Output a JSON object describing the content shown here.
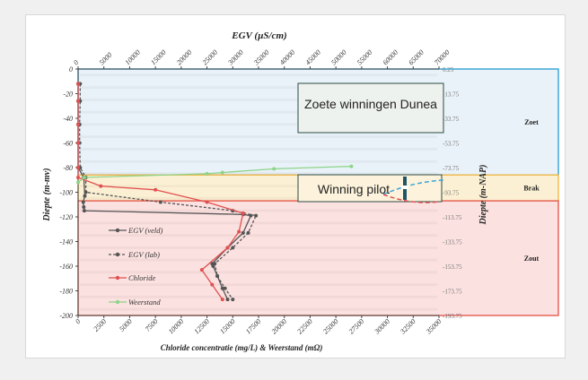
{
  "chart_data": {
    "type": "line",
    "title": "EGV (µS/cm)",
    "xlabel": "Chloride concentratie (mg/L) & Weerstand (mΩ)",
    "ylabel": "Diepte (m-mv)",
    "y2label": "Diepte (m-NAP)",
    "xlim": [
      0,
      35000
    ],
    "x2lim": [
      0,
      70000
    ],
    "ylim": [
      -200,
      0
    ],
    "x_ticks": [
      "0",
      "2500",
      "5000",
      "7500",
      "10000",
      "12500",
      "15000",
      "17500",
      "20000",
      "22500",
      "25000",
      "27500",
      "30000",
      "32500",
      "35000"
    ],
    "x2_ticks": [
      "0",
      "5000",
      "10000",
      "15000",
      "20000",
      "25000",
      "30000",
      "35000",
      "40000",
      "45000",
      "50000",
      "55000",
      "60000",
      "65000",
      "70000"
    ],
    "y_ticks": [
      "0",
      "-20",
      "-40",
      "-60",
      "-80",
      "-100",
      "-120",
      "-140",
      "-160",
      "-180",
      "-200"
    ],
    "y2_ticks": [
      "6.25",
      "-13.75",
      "-33.75",
      "-53.75",
      "-73.75",
      "-93.75",
      "-113.75",
      "-133.75",
      "-153.75",
      "-173.75",
      "-193.75"
    ],
    "zones": [
      {
        "label": "Zoet",
        "from": 0,
        "to": -86,
        "fill": "#e9f2f8",
        "stroke": "#31a3d6"
      },
      {
        "label": "Brak",
        "from": -86,
        "to": -107,
        "fill": "#fcf0d4",
        "stroke": "#f1b94a"
      },
      {
        "label": "Zout",
        "from": -107,
        "to": -200,
        "fill": "#fbe1e0",
        "stroke": "#e55a4f"
      }
    ],
    "annotations": [
      "Zoete winningen Dunea",
      "Winning pilot"
    ],
    "series": [
      {
        "name": "EGV (veld)",
        "axis": "top",
        "color": "#555555",
        "dash": "",
        "points": [
          [
            0,
            -12
          ],
          [
            0,
            -26
          ],
          [
            0,
            -45
          ],
          [
            0,
            -60
          ],
          [
            0,
            -80
          ],
          [
            1100,
            -88
          ],
          [
            1300,
            -103
          ],
          [
            1000,
            -108
          ],
          [
            1100,
            -112
          ],
          [
            1200,
            -115
          ],
          [
            32000,
            -118
          ],
          [
            33500,
            -119
          ],
          [
            32000,
            -133
          ],
          [
            29000,
            -145
          ],
          [
            26000,
            -158
          ],
          [
            26200,
            -160
          ],
          [
            27000,
            -168
          ],
          [
            28000,
            -178
          ],
          [
            29000,
            -187
          ]
        ]
      },
      {
        "name": "EGV (lab)",
        "axis": "top",
        "color": "#555555",
        "dash": "3,2",
        "points": [
          [
            400,
            -12
          ],
          [
            400,
            -26
          ],
          [
            300,
            -45
          ],
          [
            300,
            -60
          ],
          [
            400,
            -80
          ],
          [
            1500,
            -88
          ],
          [
            1500,
            -100
          ],
          [
            16000,
            -108
          ],
          [
            30000,
            -115
          ],
          [
            34500,
            -119
          ],
          [
            33000,
            -133
          ],
          [
            30000,
            -145
          ],
          [
            26500,
            -158
          ],
          [
            27000,
            -168
          ],
          [
            28500,
            -178
          ],
          [
            30000,
            -187
          ]
        ]
      },
      {
        "name": "Chloride",
        "axis": "bottom",
        "color": "#e05050",
        "dash": "",
        "points": [
          [
            0,
            -12
          ],
          [
            0,
            -26
          ],
          [
            0,
            -45
          ],
          [
            0,
            -60
          ],
          [
            0,
            -80
          ],
          [
            0,
            -88
          ],
          [
            2200,
            -95
          ],
          [
            7500,
            -98
          ],
          [
            12500,
            -108
          ],
          [
            16000,
            -117
          ],
          [
            15600,
            -132
          ],
          [
            14500,
            -145
          ],
          [
            12000,
            -163
          ],
          [
            13000,
            -175
          ],
          [
            14000,
            -187
          ]
        ]
      },
      {
        "name": "Weerstand",
        "axis": "bottom",
        "color": "#8ed48a",
        "dash": "",
        "points": [
          [
            26500,
            -79
          ],
          [
            19000,
            -81
          ],
          [
            14000,
            -84
          ],
          [
            12500,
            -85
          ],
          [
            600,
            -88
          ],
          [
            0,
            -92
          ]
        ]
      }
    ]
  }
}
